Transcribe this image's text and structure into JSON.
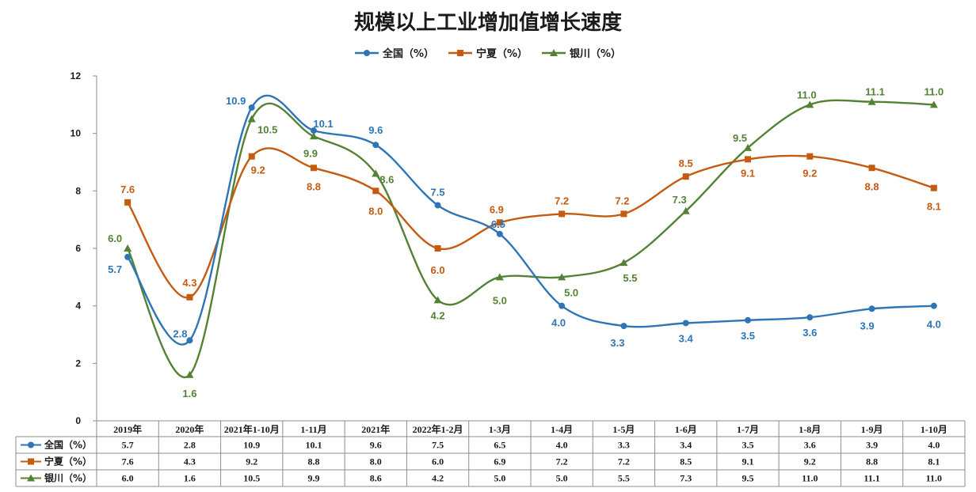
{
  "chart_data": {
    "type": "line",
    "title": "规模以上工业增加值增长速度",
    "categories": [
      "2019年",
      "2020年",
      "2021年1-10月",
      "1-11月",
      "2021年",
      "2022年1-2月",
      "1-3月",
      "1-4月",
      "1-5月",
      "1-6月",
      "1-7月",
      "1-8月",
      "1-9月",
      "1-10月"
    ],
    "series": [
      {
        "name": "全国（%）",
        "color": "#2e75b6",
        "marker": "circle",
        "values": [
          5.7,
          2.8,
          10.9,
          10.1,
          9.6,
          7.5,
          6.5,
          4.0,
          3.3,
          3.4,
          3.5,
          3.6,
          3.9,
          4.0
        ],
        "labels": [
          "5.7",
          "2.8",
          "10.9",
          "10.1",
          "9.6",
          "7.5",
          "6.5",
          "4.0",
          "3.3",
          "3.4",
          "3.5",
          "3.6",
          "3.9",
          "4.0"
        ]
      },
      {
        "name": "宁夏（%）",
        "color": "#c55a11",
        "marker": "square",
        "values": [
          7.6,
          4.3,
          9.2,
          8.8,
          8.0,
          6.0,
          6.9,
          7.2,
          7.2,
          8.5,
          9.1,
          9.2,
          8.8,
          8.1
        ],
        "labels": [
          "7.6",
          "4.3",
          "9.2",
          "8.8",
          "8.0",
          "6.0",
          "6.9",
          "7.2",
          "7.2",
          "8.5",
          "9.1",
          "9.2",
          "8.8",
          "8.1"
        ]
      },
      {
        "name": "银川（%）",
        "color": "#548235",
        "marker": "triangle",
        "values": [
          6.0,
          1.6,
          10.5,
          9.9,
          8.6,
          4.2,
          5.0,
          5.0,
          5.5,
          7.3,
          9.5,
          11.0,
          11.1,
          11.0
        ],
        "labels": [
          "6.0",
          "1.6",
          "10.5",
          "9.9",
          "8.6",
          "4.2",
          "5.0",
          "5.0",
          "5.5",
          "7.3",
          "9.5",
          "11.0",
          "11.1",
          "11.0"
        ]
      }
    ],
    "ylim": [
      0,
      12
    ],
    "yticks": [
      "0",
      "2",
      "4",
      "6",
      "8",
      "10",
      "12"
    ],
    "xlabel": "",
    "ylabel": "",
    "legend": "top-center",
    "grid": false,
    "data_table": true
  }
}
